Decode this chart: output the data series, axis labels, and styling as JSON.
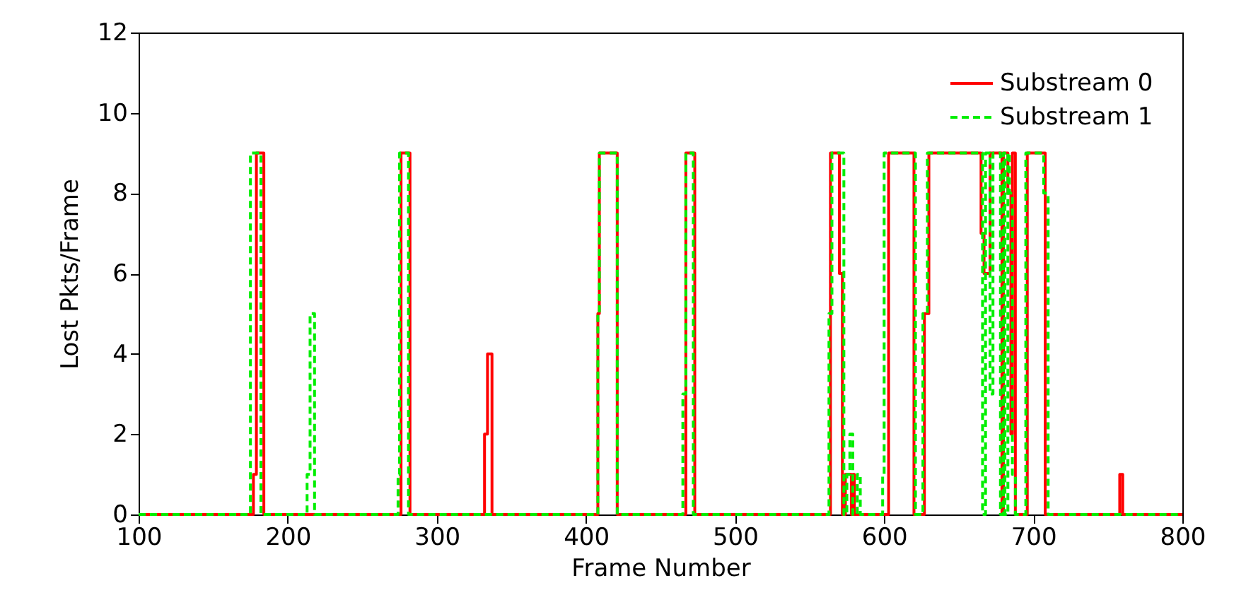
{
  "chart_data": {
    "type": "step",
    "xlabel": "Frame Number",
    "ylabel": "Lost Pkts/Frame",
    "xlim": [
      100,
      800
    ],
    "xticks": [
      100,
      200,
      300,
      400,
      500,
      600,
      700,
      800
    ],
    "ylim": [
      0,
      12
    ],
    "yticks": [
      0,
      2,
      4,
      6,
      8,
      10,
      12
    ],
    "grid": false,
    "legend": "top right",
    "marker": "none",
    "series": [
      {
        "name": "Substream 0",
        "color": "#ff0000",
        "line_style": "solid",
        "x": [
          100,
          177,
          179,
          184,
          276,
          282,
          332,
          334,
          337,
          408,
          409,
          421,
          467,
          473,
          564,
          570,
          572,
          574,
          578,
          579,
          580,
          603,
          620,
          627,
          630,
          665,
          667,
          671,
          679,
          680,
          683,
          685,
          686,
          688,
          696,
          708,
          758,
          760,
          800
        ],
        "values": [
          0,
          1,
          9,
          0,
          9,
          0,
          2,
          4,
          0,
          5,
          9,
          0,
          9,
          0,
          9,
          6,
          0,
          1,
          0,
          1,
          0,
          9,
          0,
          5,
          9,
          7,
          6,
          9,
          0,
          9,
          8,
          2,
          9,
          0,
          9,
          0,
          1,
          0,
          0
        ]
      },
      {
        "name": "Substream 1",
        "color": "#00ee00",
        "line_style": "dashed",
        "x": [
          100,
          175,
          182,
          213,
          215,
          218,
          274,
          275,
          281,
          408,
          409,
          421,
          465,
          467,
          472,
          563,
          565,
          573,
          575,
          577,
          579,
          582,
          584,
          599,
          600,
          621,
          626,
          629,
          666,
          668,
          671,
          673,
          678,
          680,
          681,
          683,
          684,
          686,
          688,
          695,
          707,
          710,
          800
        ],
        "values": [
          0,
          9,
          0,
          1,
          5,
          0,
          1,
          9,
          0,
          5,
          9,
          0,
          3,
          9,
          0,
          5,
          9,
          0,
          1,
          2,
          0,
          1,
          0,
          1,
          9,
          0,
          5,
          9,
          0,
          9,
          3,
          9,
          0,
          9,
          0,
          9,
          8,
          1,
          0,
          9,
          8,
          0,
          0
        ]
      }
    ]
  }
}
